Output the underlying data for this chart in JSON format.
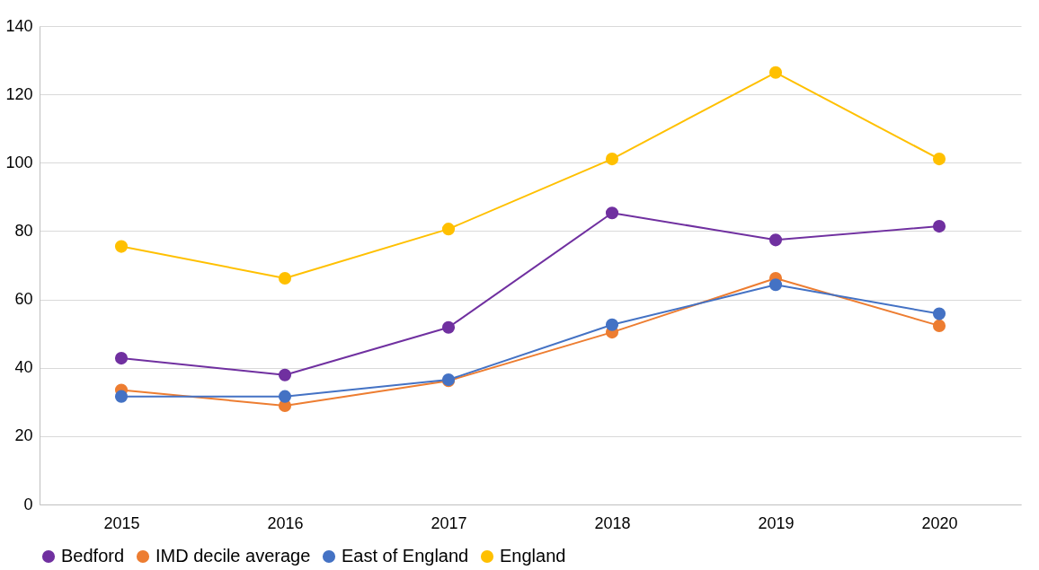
{
  "chart_data": {
    "type": "line",
    "categories": [
      "2015",
      "2016",
      "2017",
      "2018",
      "2019",
      "2020"
    ],
    "series": [
      {
        "name": "Bedford",
        "color": "#7030a0",
        "values": [
          42.8,
          37.9,
          51.8,
          85.3,
          77.4,
          81.4
        ]
      },
      {
        "name": "IMD decile average",
        "color": "#ed7d31",
        "values": [
          33.5,
          28.9,
          36.2,
          50.4,
          66.2,
          52.3
        ]
      },
      {
        "name": "East of England",
        "color": "#4472c4",
        "values": [
          31.6,
          31.6,
          36.5,
          52.6,
          64.3,
          55.8
        ]
      },
      {
        "name": "England",
        "color": "#ffc000",
        "values": [
          75.5,
          66.2,
          80.6,
          101.1,
          126.4,
          101.1
        ]
      }
    ],
    "ylim": [
      0,
      140
    ],
    "yticks": [
      0,
      20,
      40,
      60,
      80,
      100,
      120,
      140
    ],
    "grid": "y",
    "legend": "bottom left",
    "marker": "circle",
    "line_style": "solid"
  }
}
